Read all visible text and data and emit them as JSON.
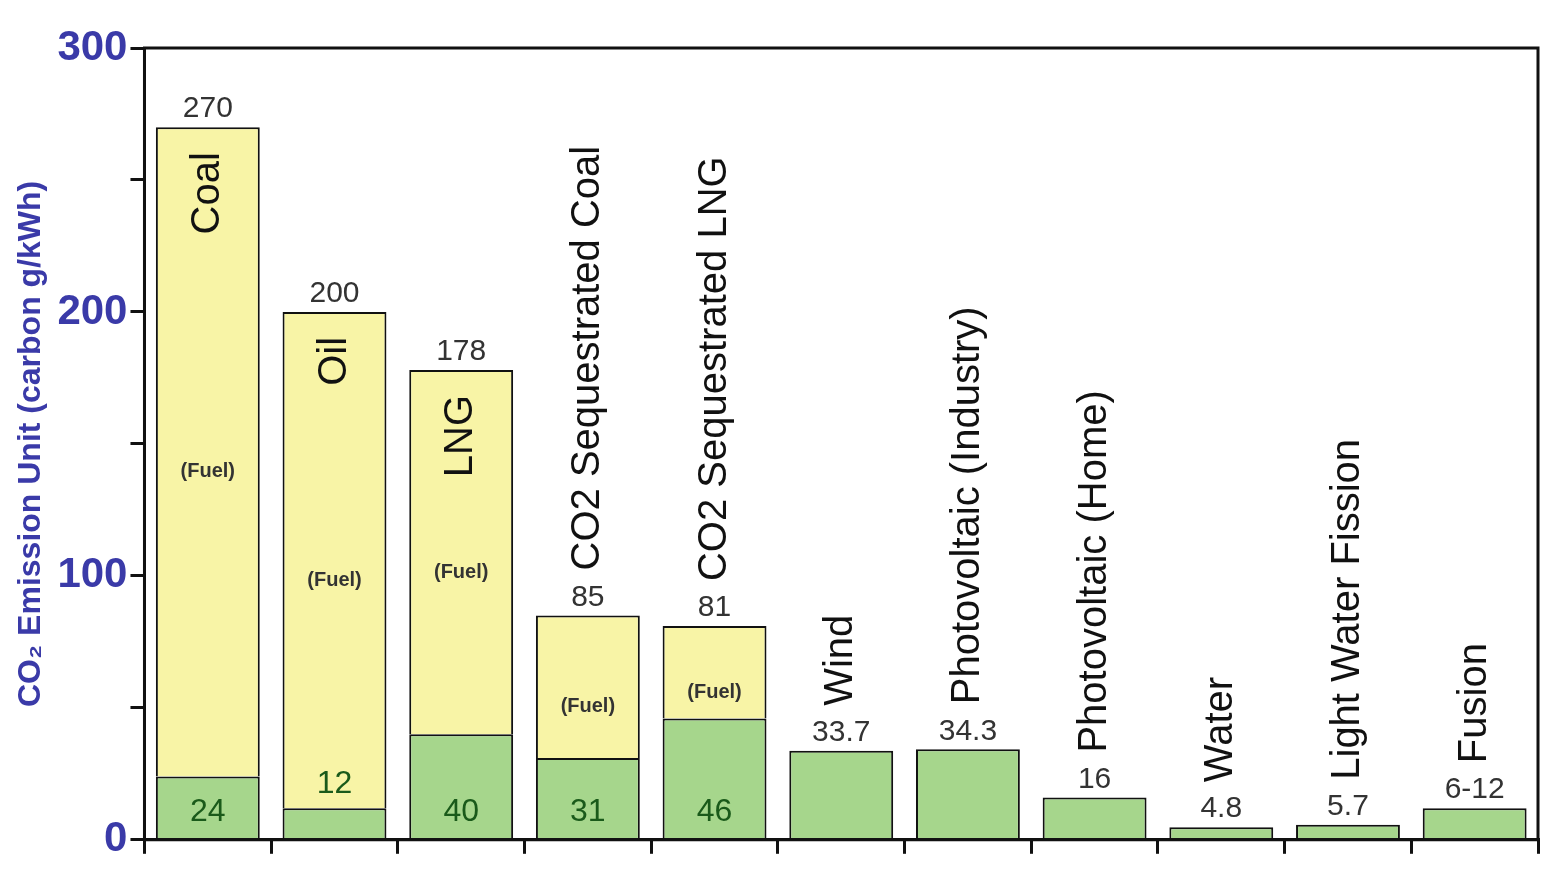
{
  "chart_data": {
    "type": "bar",
    "ylabel": "CO₂ Emission Unit (carbon g/kWh)",
    "stacked": true,
    "categories": [
      "Coal",
      "Oil",
      "LNG",
      "CO2 Sequestrated Coal",
      "CO2 Sequestrated LNG",
      "Wind",
      "Photovoltaic (Industry)",
      "Photovoltaic (Home)",
      "Water",
      "Light Water Fission",
      "Fusion"
    ],
    "series": [
      {
        "color": "#a6d68c",
        "values": [
          24,
          12,
          40,
          31,
          46,
          33.7,
          34.3,
          16,
          4.8,
          5.7,
          12
        ],
        "value_labels": [
          "24",
          "12",
          "40",
          "31",
          "46",
          null,
          null,
          null,
          null,
          null,
          null
        ]
      },
      {
        "name": "(Fuel)",
        "color": "#f8f4a6",
        "values": [
          246,
          188,
          138,
          54,
          35,
          null,
          null,
          null,
          null,
          null,
          null
        ]
      }
    ],
    "totals": [
      "270",
      "200",
      "178",
      "85",
      "81",
      "33.7",
      "34.3",
      "16",
      "4.8",
      "5.7",
      "6-12"
    ],
    "ylim": [
      0,
      300
    ],
    "yticks": [
      0,
      {
        "value": 50,
        "label": null
      },
      100,
      {
        "value": 150,
        "label": null
      },
      200,
      {
        "value": 250,
        "label": null
      },
      300
    ],
    "grid": false,
    "legend": false
  }
}
